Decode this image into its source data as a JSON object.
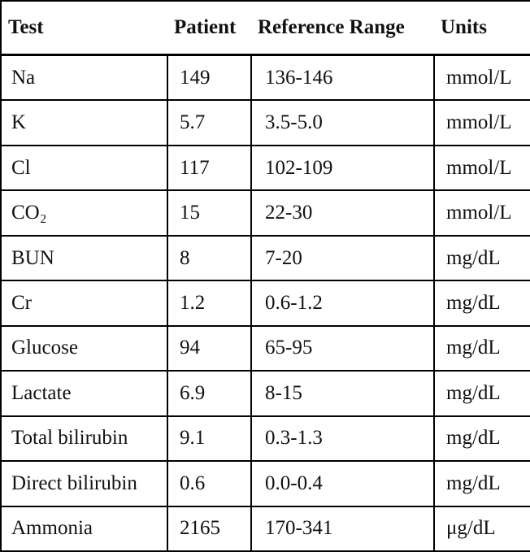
{
  "table": {
    "header": [
      "Test",
      "Patient",
      "Reference Range",
      "Units"
    ],
    "rows": [
      [
        "Na",
        "149",
        "136-146",
        "mmol/L"
      ],
      [
        "K",
        "5.7",
        "3.5-5.0",
        "mmol/L"
      ],
      [
        "Cl",
        "117",
        "102-109",
        "mmol/L"
      ],
      [
        "CO₂",
        "15",
        "22-30",
        "mmol/L"
      ],
      [
        "BUN",
        "8",
        "7-20",
        "mg/dL"
      ],
      [
        "Cr",
        "1.2",
        "0.6-1.2",
        "mg/dL"
      ],
      [
        "Glucose",
        "94",
        "65-95",
        "mg/dL"
      ],
      [
        "Lactate",
        "6.9",
        "8-15",
        "mg/dL"
      ],
      [
        "Total bilirubin",
        "9.1",
        "0.3-1.3",
        "mg/dL"
      ],
      [
        "Direct bilirubin",
        "0.6",
        "0.0-0.4",
        "mg/dL"
      ],
      [
        "Ammonia",
        "2165",
        "170-341",
        "μg/dL"
      ]
    ]
  }
}
